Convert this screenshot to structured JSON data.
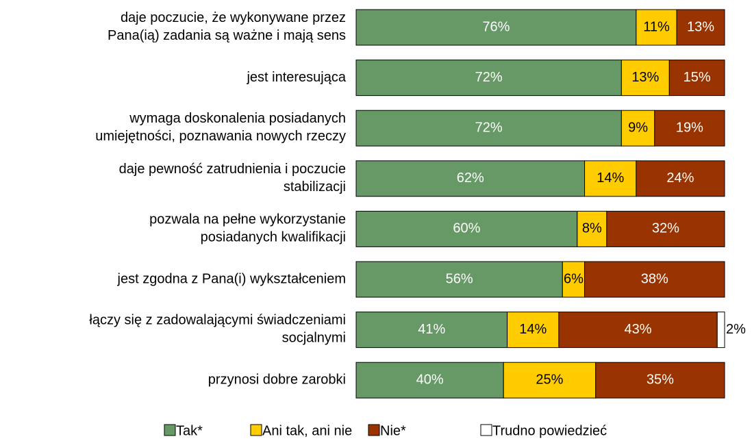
{
  "chart_data": {
    "type": "stacked-bar-horizontal",
    "categories": [
      "daje poczucie, że wykonywane przez\nPana(ią) zadania są ważne i mają sens",
      "jest interesująca",
      "wymaga doskonalenia posiadanych\numiejętności, poznawania nowych rzeczy",
      "daje pewność zatrudnienia i poczucie\nstabilizacji",
      "pozwala na pełne wykorzystanie\nposiadanych kwalifikacji",
      "jest zgodna z Pana(i) wykształceniem",
      "łączy się z zadowalającymi świadczeniami\nsocjalnymi",
      "przynosi dobre zarobki"
    ],
    "xlim": [
      0,
      100
    ],
    "series": [
      {
        "name": "Tak*",
        "color": "#669966",
        "values": [
          76,
          72,
          72,
          62,
          60,
          56,
          41,
          40
        ],
        "value_labels": [
          "76%",
          "72%",
          "72%",
          "62%",
          "60%",
          "56%",
          "41%",
          "40%"
        ]
      },
      {
        "name": "Ani tak, ani nie",
        "color": "#ffcc00",
        "values": [
          11,
          13,
          9,
          14,
          8,
          6,
          14,
          25
        ],
        "value_labels": [
          "11%",
          "13%",
          "9%",
          "14%",
          "8%",
          "6%",
          "14%",
          "25%"
        ]
      },
      {
        "name": "Nie*",
        "color": "#993300",
        "values": [
          13,
          15,
          19,
          24,
          32,
          38,
          43,
          35
        ],
        "value_labels": [
          "13%",
          "15%",
          "19%",
          "24%",
          "32%",
          "38%",
          "43%",
          "35%"
        ]
      },
      {
        "name": "Trudno powiedzieć",
        "color": "#ffffff",
        "values": [
          null,
          null,
          null,
          null,
          null,
          null,
          2,
          null
        ],
        "value_labels": [
          null,
          null,
          null,
          null,
          null,
          null,
          "2%",
          null
        ]
      }
    ],
    "legend": "bottom"
  }
}
